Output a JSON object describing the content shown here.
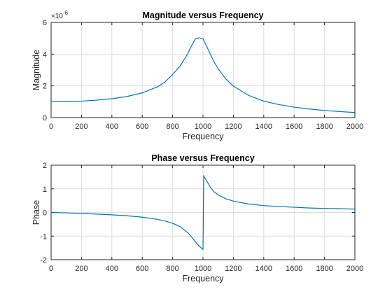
{
  "chart_data": [
    {
      "type": "line",
      "title": "Magnitude versus Frequency",
      "xlabel": "Frequency",
      "ylabel": "Magnitude",
      "xlim": [
        0,
        2000
      ],
      "ylim": [
        0,
        6
      ],
      "xticks": [
        0,
        200,
        400,
        600,
        800,
        1000,
        1200,
        1400,
        1600,
        1800,
        2000
      ],
      "yticks": [
        0,
        2,
        4,
        6
      ],
      "y_exponent_label": "×10",
      "y_exponent_power": "-6",
      "grid": true,
      "color": "#0072bd",
      "series": [
        {
          "x": [
            0,
            100,
            200,
            300,
            400,
            500,
            600,
            700,
            750,
            800,
            850,
            900,
            925,
            950,
            975,
            1000,
            1025,
            1050,
            1075,
            1100,
            1150,
            1200,
            1300,
            1400,
            1500,
            1600,
            1700,
            1800,
            1900,
            2000
          ],
          "values": [
            1.0,
            1.01,
            1.04,
            1.1,
            1.19,
            1.33,
            1.56,
            1.94,
            2.25,
            2.72,
            3.26,
            4.03,
            4.54,
            4.96,
            5.03,
            4.96,
            4.48,
            3.96,
            3.47,
            3.08,
            2.44,
            1.98,
            1.4,
            1.04,
            0.82,
            0.66,
            0.54,
            0.45,
            0.38,
            0.32
          ]
        }
      ]
    },
    {
      "type": "line",
      "title": "Phase versus Frequency",
      "xlabel": "Frequency",
      "ylabel": "Phase",
      "xlim": [
        0,
        2000
      ],
      "ylim": [
        -2,
        2
      ],
      "xticks": [
        0,
        200,
        400,
        600,
        800,
        1000,
        1200,
        1400,
        1600,
        1800,
        2000
      ],
      "yticks": [
        -2,
        -1,
        0,
        1,
        2
      ],
      "grid": true,
      "color": "#0072bd",
      "series": [
        {
          "x": [
            0,
            100,
            200,
            300,
            400,
            500,
            600,
            700,
            750,
            800,
            850,
            900,
            925,
            950,
            975,
            995,
            1000,
            1005,
            1025,
            1050,
            1075,
            1100,
            1150,
            1200,
            1300,
            1400,
            1500,
            1600,
            1700,
            1800,
            1900,
            2000
          ],
          "values": [
            0.0,
            -0.02,
            -0.04,
            -0.07,
            -0.1,
            -0.14,
            -0.2,
            -0.29,
            -0.36,
            -0.46,
            -0.6,
            -0.86,
            -1.04,
            -1.24,
            -1.43,
            -1.54,
            -1.56,
            1.54,
            1.33,
            1.05,
            0.86,
            0.74,
            0.58,
            0.48,
            0.36,
            0.29,
            0.25,
            0.22,
            0.19,
            0.17,
            0.16,
            0.14
          ]
        }
      ]
    }
  ]
}
